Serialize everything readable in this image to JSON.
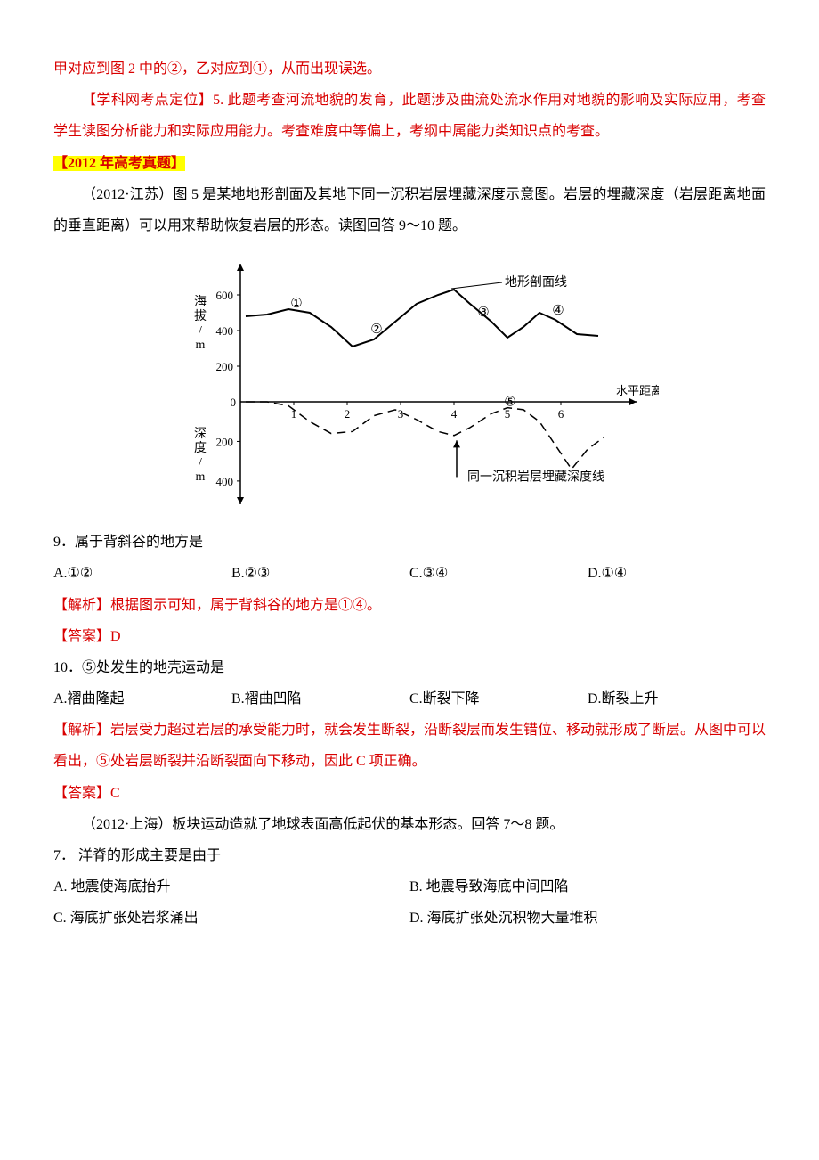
{
  "intro_line": "甲对应到图 2 中的②，乙对应到①，从而出现误选。",
  "kepoint_label": "【学科网考点定位】5.",
  "kepoint_text": " 此题考查河流地貌的发育，此题涉及曲流处流水作用对地貌的影响及实际应用，考查学生读图分析能力和实际应用能力。考查难度中等偏上，考纲中属能力类知识点的考查。",
  "year_header": "【2012 年高考真题】",
  "jiangsu_context": "（2012·江苏）图 5 是某地地形剖面及其地下同一沉积岩层埋藏深度示意图。岩层的埋藏深度（岩层距离地面的垂直距离）可以用来帮助恢复岩层的形态。读图回答 9～10 题。",
  "chart": {
    "y_upper_label": "海拔/m",
    "y_lower_label": "深度/m",
    "x_label": "水平距离/km",
    "line1_label": "地形剖面线",
    "line2_label": "同一沉积岩层埋藏深度线",
    "y_upper_ticks": [
      "0",
      "200",
      "400",
      "600"
    ],
    "y_lower_ticks": [
      "200",
      "400"
    ],
    "x_ticks": [
      "0",
      "1",
      "2",
      "3",
      "4",
      "5",
      "6"
    ],
    "circles": [
      "①",
      "②",
      "③",
      "④",
      "⑤"
    ],
    "colors": {
      "axis": "#000000",
      "top_line": "#000000",
      "dash_line": "#000000",
      "bg": "#ffffff"
    },
    "top_points": [
      [
        0.1,
        480
      ],
      [
        0.5,
        490
      ],
      [
        0.9,
        520
      ],
      [
        1.3,
        500
      ],
      [
        1.7,
        420
      ],
      [
        2.1,
        310
      ],
      [
        2.5,
        350
      ],
      [
        2.9,
        450
      ],
      [
        3.3,
        550
      ],
      [
        3.7,
        600
      ],
      [
        4.0,
        630
      ],
      [
        4.3,
        550
      ],
      [
        4.7,
        450
      ],
      [
        5.0,
        360
      ],
      [
        5.3,
        420
      ],
      [
        5.6,
        500
      ],
      [
        5.9,
        460
      ],
      [
        6.3,
        380
      ],
      [
        6.7,
        370
      ]
    ],
    "dash_points": [
      [
        0.1,
        0
      ],
      [
        0.5,
        0
      ],
      [
        0.9,
        -20
      ],
      [
        1.3,
        -100
      ],
      [
        1.7,
        -160
      ],
      [
        2.1,
        -150
      ],
      [
        2.5,
        -70
      ],
      [
        2.9,
        -40
      ],
      [
        3.3,
        -90
      ],
      [
        3.7,
        -150
      ],
      [
        4.0,
        -170
      ],
      [
        4.3,
        -130
      ],
      [
        4.7,
        -60
      ],
      [
        5.0,
        -30
      ],
      [
        5.3,
        -40
      ],
      [
        5.6,
        -100
      ],
      [
        5.9,
        -220
      ],
      [
        6.2,
        -340
      ],
      [
        6.5,
        -240
      ],
      [
        6.8,
        -180
      ]
    ]
  },
  "q9": {
    "stem": "9．属于背斜谷的地方是",
    "A": "A.①②",
    "B": "B.②③",
    "C": "C.③④",
    "D": "D.①④",
    "explain": "【解析】根据图示可知，属于背斜谷的地方是①④。",
    "answer": "【答案】D"
  },
  "q10": {
    "stem": "10．⑤处发生的地壳运动是",
    "A": "A.褶曲隆起",
    "B": "B.褶曲凹陷",
    "C": "C.断裂下降",
    "D": "D.断裂上升",
    "explain": "【解析】岩层受力超过岩层的承受能力时，就会发生断裂，沿断裂层而发生错位、移动就形成了断层。从图中可以看出，⑤处岩层断裂并沿断裂面向下移动，因此 C 项正确。",
    "answer": "【答案】C"
  },
  "shanghai_context": "（2012·上海）板块运动造就了地球表面高低起伏的基本形态。回答 7～8 题。",
  "q7": {
    "stem": "7．  洋脊的形成主要是由于",
    "A": "A.  地震使海底抬升",
    "B": "B.  地震导致海底中间凹陷",
    "C": "C.  海底扩张处岩浆涌出",
    "D": "D.  海底扩张处沉积物大量堆积"
  }
}
